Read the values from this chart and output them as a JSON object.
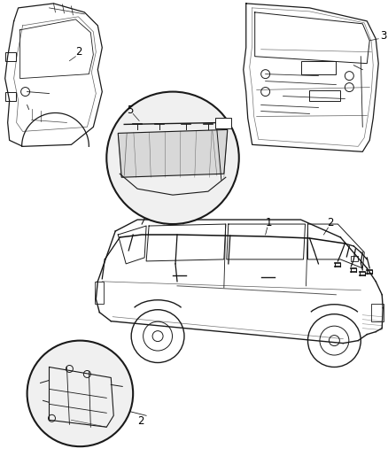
{
  "bg_color": "#ffffff",
  "fig_width": 4.38,
  "fig_height": 5.33,
  "dpi": 100,
  "line_color": "#1a1a1a",
  "label_fontsize": 8.5,
  "label_color": "#000000"
}
